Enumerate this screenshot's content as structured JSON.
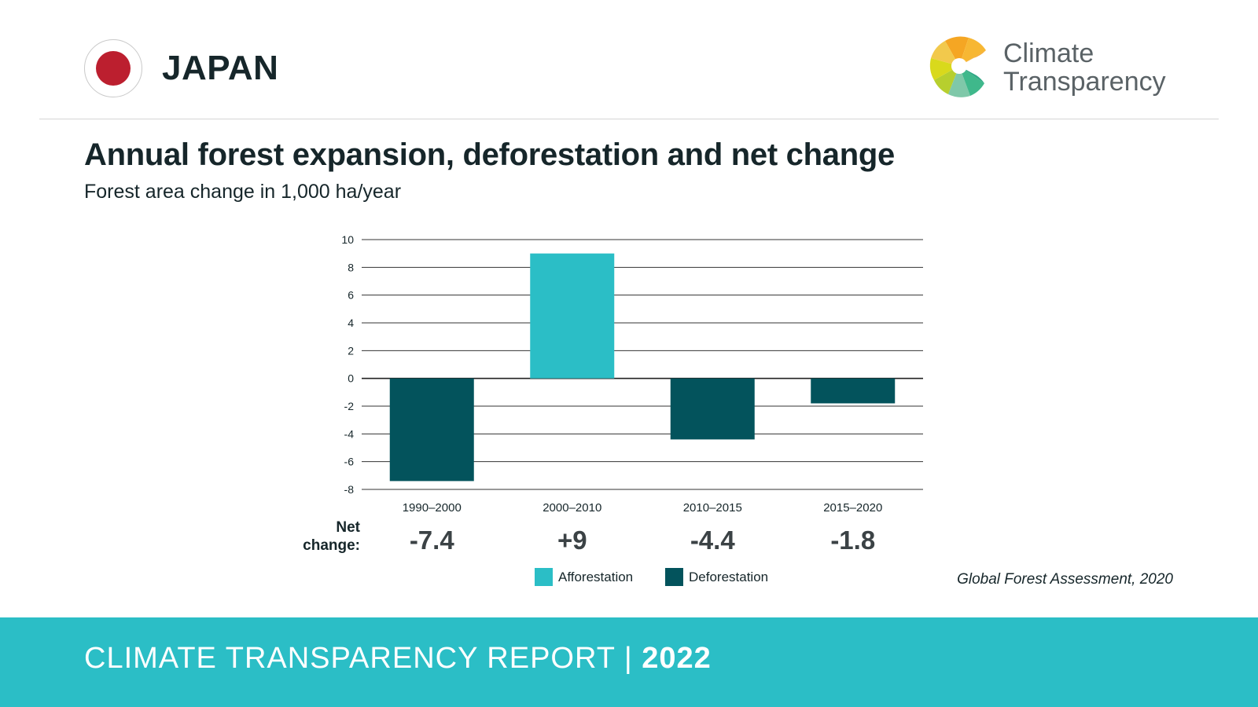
{
  "header": {
    "country": "JAPAN",
    "logo_line1": "Climate",
    "logo_line2": "Transparency"
  },
  "chart_title": "Annual forest expansion, deforestation and net change",
  "chart_subtitle": "Forest area change in 1,000 ha/year",
  "chart_data": {
    "type": "bar",
    "title": "Annual forest expansion, deforestation and net change",
    "subtitle": "Forest area change in 1,000 ha/year",
    "categories": [
      "1990–2000",
      "2000–2010",
      "2010–2015",
      "2015–2020"
    ],
    "series": [
      {
        "name": "Afforestation",
        "color": "#2bbec6",
        "values": [
          0,
          9,
          0,
          0
        ]
      },
      {
        "name": "Deforestation",
        "color": "#03535c",
        "values": [
          -7.4,
          0,
          -4.4,
          -1.8
        ]
      }
    ],
    "ylim": [
      -8,
      10
    ],
    "yticks": [
      10,
      8,
      6,
      4,
      2,
      0,
      -2,
      -4,
      -6,
      -8
    ],
    "grid": true,
    "net_change_label_line1": "Net",
    "net_change_label_line2": "change:",
    "net_change": [
      "-7.4",
      "+9",
      "-4.4",
      "-1.8"
    ],
    "legend_position": "bottom",
    "source": "Global Forest Assessment, 2020"
  },
  "footer": {
    "text": "CLIMATE TRANSPARENCY REPORT",
    "separator": "|",
    "year": "2022"
  },
  "colors": {
    "afforestation": "#2bbec6",
    "deforestation": "#03535c",
    "footer_bg": "#2bbec6",
    "flag_red": "#bc1f2f"
  }
}
